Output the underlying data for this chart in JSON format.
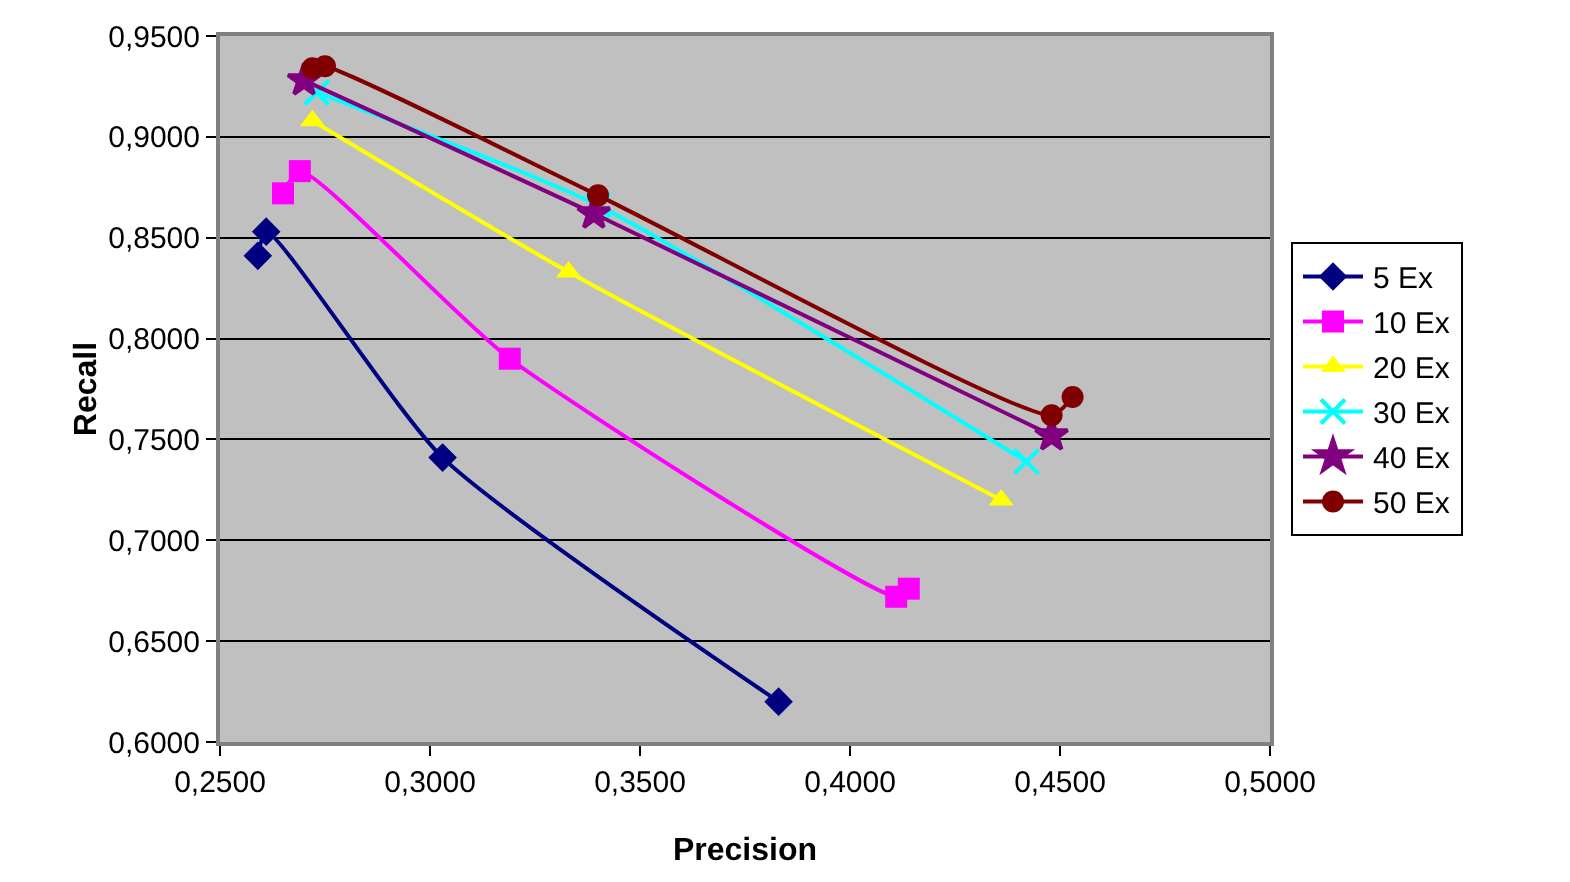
{
  "chart_data": {
    "type": "line",
    "xlabel": "Precision",
    "ylabel": "Recall",
    "xlim": [
      0.25,
      0.5
    ],
    "ylim": [
      0.6,
      0.95
    ],
    "xticks": [
      {
        "value": 0.25,
        "label": "0,2500"
      },
      {
        "value": 0.3,
        "label": "0,3000"
      },
      {
        "value": 0.35,
        "label": "0,3500"
      },
      {
        "value": 0.4,
        "label": "0,4000"
      },
      {
        "value": 0.45,
        "label": "0,4500"
      },
      {
        "value": 0.5,
        "label": "0,5000"
      }
    ],
    "yticks": [
      {
        "value": 0.6,
        "label": "0,6000"
      },
      {
        "value": 0.65,
        "label": "0,6500"
      },
      {
        "value": 0.7,
        "label": "0,7000"
      },
      {
        "value": 0.75,
        "label": "0,7500"
      },
      {
        "value": 0.8,
        "label": "0,8000"
      },
      {
        "value": 0.85,
        "label": "0,8500"
      },
      {
        "value": 0.9,
        "label": "0,9000"
      },
      {
        "value": 0.95,
        "label": "0,9500"
      }
    ],
    "grid": "y",
    "legend": "right",
    "series": [
      {
        "name": "5 Ex",
        "color": "#000080",
        "marker": "diamond",
        "x": [
          0.259,
          0.261,
          0.303,
          0.383
        ],
        "values": [
          0.841,
          0.853,
          0.741,
          0.62
        ]
      },
      {
        "name": "10 Ex",
        "color": "#ff00ff",
        "marker": "square",
        "x": [
          0.265,
          0.269,
          0.319,
          0.411,
          0.414
        ],
        "values": [
          0.872,
          0.883,
          0.79,
          0.672,
          0.676
        ]
      },
      {
        "name": "20 Ex",
        "color": "#ffff00",
        "marker": "triangle",
        "x": [
          0.272,
          0.333,
          0.436
        ],
        "values": [
          0.908,
          0.833,
          0.72
        ]
      },
      {
        "name": "30 Ex",
        "color": "#00ffff",
        "marker": "cross",
        "x": [
          0.273,
          0.34,
          0.442
        ],
        "values": [
          0.922,
          0.866,
          0.739
        ]
      },
      {
        "name": "40 Ex",
        "color": "#800080",
        "marker": "star",
        "x": [
          0.27,
          0.339,
          0.448
        ],
        "values": [
          0.928,
          0.862,
          0.752
        ]
      },
      {
        "name": "50 Ex",
        "color": "#800000",
        "marker": "circle",
        "x": [
          0.272,
          0.275,
          0.34,
          0.448,
          0.453
        ],
        "values": [
          0.934,
          0.935,
          0.871,
          0.762,
          0.771
        ]
      }
    ]
  }
}
